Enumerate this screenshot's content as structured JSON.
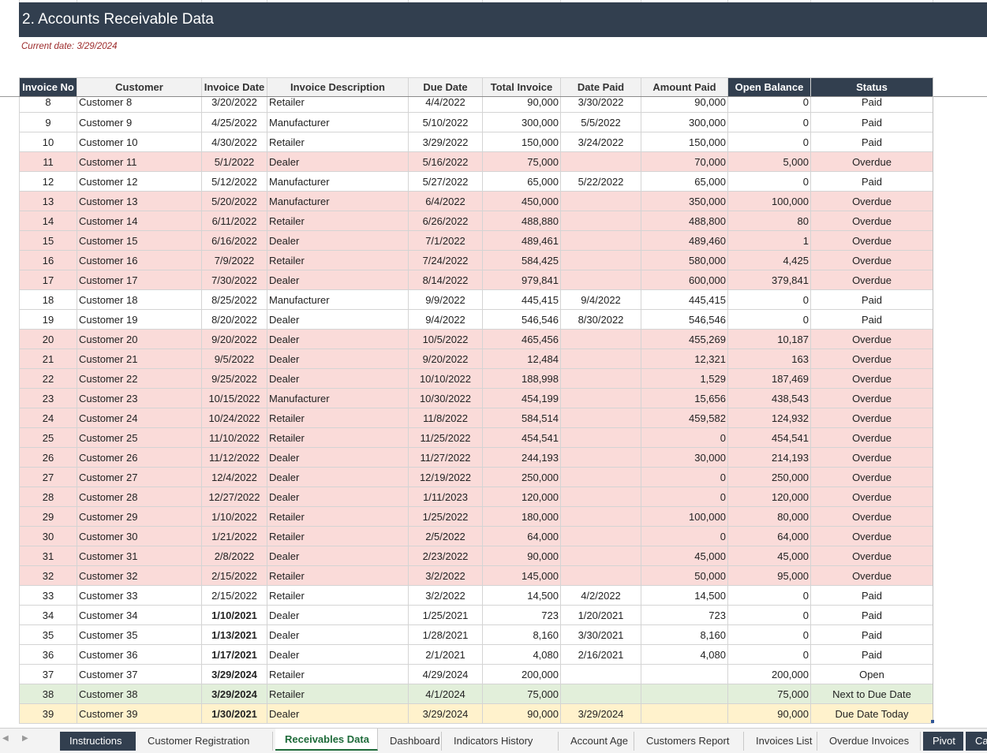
{
  "sheet": {
    "title": "2. Accounts Receivable Data",
    "current_date": "Current date: 3/29/2024"
  },
  "table": {
    "headers": [
      "Invoice No",
      "Customer",
      "Invoice Date",
      "Invoice Description",
      "Due Date",
      "Total Invoice",
      "Date Paid",
      "Amount Paid",
      "Open Balance",
      "Status"
    ],
    "rows": [
      {
        "no": "8",
        "customer": "Customer 8",
        "inv_date": "3/20/2022",
        "desc": "Retailer",
        "due": "4/4/2022",
        "total": "90,000",
        "paid_date": "3/30/2022",
        "amount_paid": "90,000",
        "open": "0",
        "status": "Paid",
        "type": "paid"
      },
      {
        "no": "9",
        "customer": "Customer 9",
        "inv_date": "4/25/2022",
        "desc": "Manufacturer",
        "due": "5/10/2022",
        "total": "300,000",
        "paid_date": "5/5/2022",
        "amount_paid": "300,000",
        "open": "0",
        "status": "Paid",
        "type": "paid"
      },
      {
        "no": "10",
        "customer": "Customer 10",
        "inv_date": "4/30/2022",
        "desc": "Retailer",
        "due": "3/29/2022",
        "total": "150,000",
        "paid_date": "3/24/2022",
        "amount_paid": "150,000",
        "open": "0",
        "status": "Paid",
        "type": "paid"
      },
      {
        "no": "11",
        "customer": "Customer 11",
        "inv_date": "5/1/2022",
        "desc": "Dealer",
        "due": "5/16/2022",
        "total": "75,000",
        "paid_date": "",
        "amount_paid": "70,000",
        "open": "5,000",
        "status": "Overdue",
        "type": "overdue"
      },
      {
        "no": "12",
        "customer": "Customer 12",
        "inv_date": "5/12/2022",
        "desc": "Manufacturer",
        "due": "5/27/2022",
        "total": "65,000",
        "paid_date": "5/22/2022",
        "amount_paid": "65,000",
        "open": "0",
        "status": "Paid",
        "type": "paid"
      },
      {
        "no": "13",
        "customer": "Customer 13",
        "inv_date": "5/20/2022",
        "desc": "Manufacturer",
        "due": "6/4/2022",
        "total": "450,000",
        "paid_date": "",
        "amount_paid": "350,000",
        "open": "100,000",
        "status": "Overdue",
        "type": "overdue"
      },
      {
        "no": "14",
        "customer": "Customer 14",
        "inv_date": "6/11/2022",
        "desc": "Retailer",
        "due": "6/26/2022",
        "total": "488,880",
        "paid_date": "",
        "amount_paid": "488,800",
        "open": "80",
        "status": "Overdue",
        "type": "overdue"
      },
      {
        "no": "15",
        "customer": "Customer 15",
        "inv_date": "6/16/2022",
        "desc": "Dealer",
        "due": "7/1/2022",
        "total": "489,461",
        "paid_date": "",
        "amount_paid": "489,460",
        "open": "1",
        "status": "Overdue",
        "type": "overdue"
      },
      {
        "no": "16",
        "customer": "Customer 16",
        "inv_date": "7/9/2022",
        "desc": "Retailer",
        "due": "7/24/2022",
        "total": "584,425",
        "paid_date": "",
        "amount_paid": "580,000",
        "open": "4,425",
        "status": "Overdue",
        "type": "overdue"
      },
      {
        "no": "17",
        "customer": "Customer 17",
        "inv_date": "7/30/2022",
        "desc": "Dealer",
        "due": "8/14/2022",
        "total": "979,841",
        "paid_date": "",
        "amount_paid": "600,000",
        "open": "379,841",
        "status": "Overdue",
        "type": "overdue"
      },
      {
        "no": "18",
        "customer": "Customer 18",
        "inv_date": "8/25/2022",
        "desc": "Manufacturer",
        "due": "9/9/2022",
        "total": "445,415",
        "paid_date": "9/4/2022",
        "amount_paid": "445,415",
        "open": "0",
        "status": "Paid",
        "type": "paid"
      },
      {
        "no": "19",
        "customer": "Customer 19",
        "inv_date": "8/20/2022",
        "desc": "Dealer",
        "due": "9/4/2022",
        "total": "546,546",
        "paid_date": "8/30/2022",
        "amount_paid": "546,546",
        "open": "0",
        "status": "Paid",
        "type": "paid"
      },
      {
        "no": "20",
        "customer": "Customer 20",
        "inv_date": "9/20/2022",
        "desc": "Dealer",
        "due": "10/5/2022",
        "total": "465,456",
        "paid_date": "",
        "amount_paid": "455,269",
        "open": "10,187",
        "status": "Overdue",
        "type": "overdue"
      },
      {
        "no": "21",
        "customer": "Customer 21",
        "inv_date": "9/5/2022",
        "desc": "Dealer",
        "due": "9/20/2022",
        "total": "12,484",
        "paid_date": "",
        "amount_paid": "12,321",
        "open": "163",
        "status": "Overdue",
        "type": "overdue"
      },
      {
        "no": "22",
        "customer": "Customer 22",
        "inv_date": "9/25/2022",
        "desc": "Dealer",
        "due": "10/10/2022",
        "total": "188,998",
        "paid_date": "",
        "amount_paid": "1,529",
        "open": "187,469",
        "status": "Overdue",
        "type": "overdue"
      },
      {
        "no": "23",
        "customer": "Customer 23",
        "inv_date": "10/15/2022",
        "desc": "Manufacturer",
        "due": "10/30/2022",
        "total": "454,199",
        "paid_date": "",
        "amount_paid": "15,656",
        "open": "438,543",
        "status": "Overdue",
        "type": "overdue"
      },
      {
        "no": "24",
        "customer": "Customer 24",
        "inv_date": "10/24/2022",
        "desc": "Retailer",
        "due": "11/8/2022",
        "total": "584,514",
        "paid_date": "",
        "amount_paid": "459,582",
        "open": "124,932",
        "status": "Overdue",
        "type": "overdue"
      },
      {
        "no": "25",
        "customer": "Customer 25",
        "inv_date": "11/10/2022",
        "desc": "Retailer",
        "due": "11/25/2022",
        "total": "454,541",
        "paid_date": "",
        "amount_paid": "0",
        "open": "454,541",
        "status": "Overdue",
        "type": "overdue"
      },
      {
        "no": "26",
        "customer": "Customer 26",
        "inv_date": "11/12/2022",
        "desc": "Dealer",
        "due": "11/27/2022",
        "total": "244,193",
        "paid_date": "",
        "amount_paid": "30,000",
        "open": "214,193",
        "status": "Overdue",
        "type": "overdue"
      },
      {
        "no": "27",
        "customer": "Customer 27",
        "inv_date": "12/4/2022",
        "desc": "Dealer",
        "due": "12/19/2022",
        "total": "250,000",
        "paid_date": "",
        "amount_paid": "0",
        "open": "250,000",
        "status": "Overdue",
        "type": "overdue"
      },
      {
        "no": "28",
        "customer": "Customer 28",
        "inv_date": "12/27/2022",
        "desc": "Dealer",
        "due": "1/11/2023",
        "total": "120,000",
        "paid_date": "",
        "amount_paid": "0",
        "open": "120,000",
        "status": "Overdue",
        "type": "overdue"
      },
      {
        "no": "29",
        "customer": "Customer 29",
        "inv_date": "1/10/2022",
        "desc": "Retailer",
        "due": "1/25/2022",
        "total": "180,000",
        "paid_date": "",
        "amount_paid": "100,000",
        "open": "80,000",
        "status": "Overdue",
        "type": "overdue"
      },
      {
        "no": "30",
        "customer": "Customer 30",
        "inv_date": "1/21/2022",
        "desc": "Retailer",
        "due": "2/5/2022",
        "total": "64,000",
        "paid_date": "",
        "amount_paid": "0",
        "open": "64,000",
        "status": "Overdue",
        "type": "overdue"
      },
      {
        "no": "31",
        "customer": "Customer 31",
        "inv_date": "2/8/2022",
        "desc": "Dealer",
        "due": "2/23/2022",
        "total": "90,000",
        "paid_date": "",
        "amount_paid": "45,000",
        "open": "45,000",
        "status": "Overdue",
        "type": "overdue"
      },
      {
        "no": "32",
        "customer": "Customer 32",
        "inv_date": "2/15/2022",
        "desc": "Retailer",
        "due": "3/2/2022",
        "total": "145,000",
        "paid_date": "",
        "amount_paid": "50,000",
        "open": "95,000",
        "status": "Overdue",
        "type": "overdue"
      },
      {
        "no": "33",
        "customer": "Customer 33",
        "inv_date": "2/15/2022",
        "desc": "Retailer",
        "due": "3/2/2022",
        "total": "14,500",
        "paid_date": "4/2/2022",
        "amount_paid": "14,500",
        "open": "0",
        "status": "Paid",
        "type": "paid"
      },
      {
        "no": "34",
        "customer": "Customer 34",
        "inv_date": "1/10/2021",
        "desc": "Dealer",
        "due": "1/25/2021",
        "total": "723",
        "paid_date": "1/20/2021",
        "amount_paid": "723",
        "open": "0",
        "status": "Paid",
        "type": "paid",
        "bold_date": true
      },
      {
        "no": "35",
        "customer": "Customer 35",
        "inv_date": "1/13/2021",
        "desc": "Dealer",
        "due": "1/28/2021",
        "total": "8,160",
        "paid_date": "3/30/2021",
        "amount_paid": "8,160",
        "open": "0",
        "status": "Paid",
        "type": "paid",
        "bold_date": true
      },
      {
        "no": "36",
        "customer": "Customer 36",
        "inv_date": "1/17/2021",
        "desc": "Dealer",
        "due": "2/1/2021",
        "total": "4,080",
        "paid_date": "2/16/2021",
        "amount_paid": "4,080",
        "open": "0",
        "status": "Paid",
        "type": "paid",
        "bold_date": true
      },
      {
        "no": "37",
        "customer": "Customer 37",
        "inv_date": "3/29/2024",
        "desc": "Retailer",
        "due": "4/29/2024",
        "total": "200,000",
        "paid_date": "",
        "amount_paid": "",
        "open": "200,000",
        "status": "Open",
        "type": "open",
        "bold_date": true
      },
      {
        "no": "38",
        "customer": "Customer 38",
        "inv_date": "3/29/2024",
        "desc": "Retailer",
        "due": "4/1/2024",
        "total": "75,000",
        "paid_date": "",
        "amount_paid": "",
        "open": "75,000",
        "status": "Next to Due Date",
        "type": "next",
        "bold_date": true
      },
      {
        "no": "39",
        "customer": "Customer 39",
        "inv_date": "1/30/2021",
        "desc": "Dealer",
        "due": "3/29/2024",
        "total": "90,000",
        "paid_date": "3/29/2024",
        "amount_paid": "",
        "open": "90,000",
        "status": "Due Date Today",
        "type": "today",
        "bold_date": true
      }
    ]
  },
  "tabs": [
    {
      "label": "Instructions",
      "style": "dark"
    },
    {
      "label": "Customer Registration",
      "style": "normal"
    },
    {
      "label": "Receivables Data",
      "style": "active"
    },
    {
      "label": "Dashboard",
      "style": "normal"
    },
    {
      "label": "Indicators History",
      "style": "normal"
    },
    {
      "label": "Account Age",
      "style": "normal"
    },
    {
      "label": "Customers Report",
      "style": "normal"
    },
    {
      "label": "Invoices List",
      "style": "normal"
    },
    {
      "label": "Overdue Invoices",
      "style": "normal"
    },
    {
      "label": "Pivot",
      "style": "dark"
    },
    {
      "label": "Calc",
      "style": "dark"
    }
  ],
  "nav": {
    "prev_icon": "◀",
    "next_icon": "▶"
  },
  "colors": {
    "header_dark": "#323f4f",
    "overdue": "#fadbd9",
    "next_due": "#e2efda",
    "due_today": "#fff2cc",
    "active_tab": "#1e6b3a"
  }
}
